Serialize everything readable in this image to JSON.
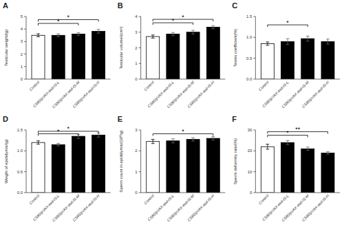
{
  "chart_data": [
    {
      "type": "bar",
      "title": "A",
      "ylabel": "Testicular weight/(g)",
      "categories": [
        "Control",
        "CS80/pVAX-asd-IS-L",
        "CS80/pVAX-asd-IS-M",
        "CS80/pVAX-asd-IS-H"
      ],
      "values": [
        3.5,
        3.5,
        3.6,
        3.82
      ],
      "errors": [
        0.12,
        0.12,
        0.12,
        0.15
      ],
      "colors": [
        "white",
        "black",
        "black",
        "black"
      ],
      "ylim": [
        0,
        5
      ],
      "yticks": [
        0,
        1,
        2,
        3,
        4,
        5
      ],
      "annotations": [
        {
          "text": "*",
          "from": "Control",
          "to": "CS80/pVAX-asd-IS-M",
          "y": 4.45
        },
        {
          "text": "*",
          "from": "Control",
          "to": "CS80/pVAX-asd-IS-H",
          "y": 4.75
        }
      ]
    },
    {
      "type": "bar",
      "title": "B",
      "ylabel": "Testicular volume/(cm³)",
      "categories": [
        "Control",
        "CS80/pVAX-asd-IS-L",
        "CS80/pVAX-asd-IS-M",
        "CS80/pVAX-asd-IS-H"
      ],
      "values": [
        2.72,
        2.88,
        3.0,
        3.32
      ],
      "errors": [
        0.1,
        0.1,
        0.12,
        0.1
      ],
      "colors": [
        "white",
        "black",
        "black",
        "black"
      ],
      "ylim": [
        0,
        4
      ],
      "yticks": [
        0,
        1,
        2,
        3,
        4
      ],
      "annotations": [
        {
          "text": "*",
          "from": "Control",
          "to": "CS80/pVAX-asd-IS-M",
          "y": 3.6
        },
        {
          "text": "*",
          "from": "Control",
          "to": "CS80/pVAX-asd-IS-H",
          "y": 3.82
        }
      ]
    },
    {
      "type": "bar",
      "title": "C",
      "ylabel": "Testes coefficient(%)",
      "categories": [
        "Control",
        "CS80/pVAX-asd-IS-L",
        "CS80/pVAX-asd-IS-M",
        "CS80/pVAX-asd-IS-H"
      ],
      "values": [
        0.85,
        0.9,
        0.97,
        0.9
      ],
      "errors": [
        0.04,
        0.07,
        0.06,
        0.06
      ],
      "colors": [
        "white",
        "black",
        "black",
        "black"
      ],
      "ylim": [
        0.0,
        1.5
      ],
      "yticks": [
        {
          "value": 0,
          "label": "0.0"
        },
        0.5,
        {
          "value": 1,
          "label": "1.0"
        },
        1.5
      ],
      "annotations": [
        {
          "text": "*",
          "from": "Control",
          "to": "CS80/pVAX-asd-IS-M",
          "y": 1.3
        }
      ]
    },
    {
      "type": "bar",
      "title": "D",
      "ylabel": "Weight of epididymis/(g)",
      "categories": [
        "Control",
        "CS80/pVAX-asd-IS-L",
        "CS80/pVAX-asd-IS-M",
        "CS80/pVAX-asd-IS-H"
      ],
      "values": [
        1.2,
        1.15,
        1.35,
        1.38
      ],
      "errors": [
        0.04,
        0.03,
        0.05,
        0.05
      ],
      "colors": [
        "white",
        "black",
        "black",
        "black"
      ],
      "ylim": [
        0.0,
        1.5
      ],
      "yticks": [
        {
          "value": 0,
          "label": "0.0"
        },
        0.5,
        {
          "value": 1,
          "label": "1.0"
        },
        1.5
      ],
      "annotations": [
        {
          "text": "*",
          "from": "Control",
          "to": "CS80/pVAX-asd-IS-M",
          "y": 1.41
        },
        {
          "text": "*",
          "from": "Control",
          "to": "CS80/pVAX-asd-IS-H",
          "y": 1.47
        }
      ]
    },
    {
      "type": "bar",
      "title": "E",
      "ylabel": "Sperm count in epididymis/(10⁸/g)",
      "categories": [
        "Control",
        "CS80/pVAX-asd-IS-L",
        "CS80/pVAX-asd-IS-M",
        "CS80/pVAX-asd-IS-H"
      ],
      "values": [
        2.45,
        2.48,
        2.55,
        2.6
      ],
      "errors": [
        0.1,
        0.1,
        0.08,
        0.08
      ],
      "colors": [
        "white",
        "black",
        "black",
        "black"
      ],
      "ylim": [
        0,
        3
      ],
      "yticks": [
        0,
        1,
        2,
        3
      ],
      "annotations": [
        {
          "text": "*",
          "from": "Control",
          "to": "CS80/pVAX-asd-IS-H",
          "y": 2.82
        }
      ]
    },
    {
      "type": "bar",
      "title": "F",
      "ylabel": "Sperm deformity rate/(%)",
      "categories": [
        "Control",
        "CS80/pVAX-asd-IS-L",
        "CS80/pVAX-asd-IS-M",
        "CS80/pVAX-asd-IS-H"
      ],
      "values": [
        22.0,
        24.0,
        21.0,
        19.0
      ],
      "errors": [
        1.2,
        1.0,
        0.8,
        0.6
      ],
      "colors": [
        "white",
        "black",
        "black",
        "black"
      ],
      "ylim": [
        0,
        30
      ],
      "yticks": [
        0,
        10,
        20,
        30
      ],
      "annotations": [
        {
          "text": "*",
          "from": "Control",
          "to": "CS80/pVAX-asd-IS-M",
          "y": 27.5
        },
        {
          "text": "**",
          "from": "Control",
          "to": "CS80/pVAX-asd-IS-H",
          "y": 29.2
        }
      ]
    }
  ]
}
